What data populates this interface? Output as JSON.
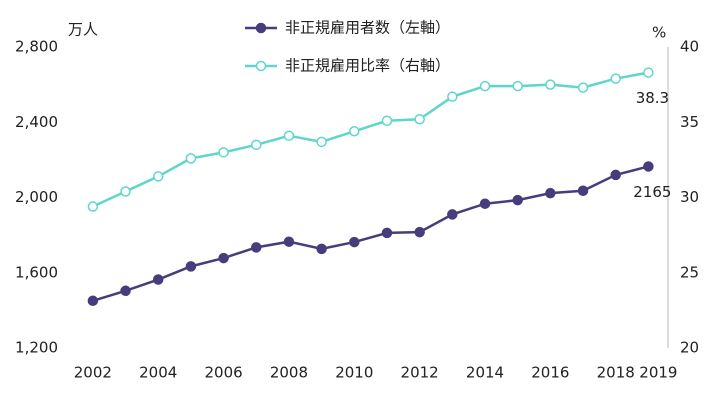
{
  "chart_data": {
    "type": "line",
    "y_unit_label": "万人",
    "y2_unit_label": "%",
    "x": [
      2002,
      2003,
      2004,
      2005,
      2006,
      2007,
      2008,
      2009,
      2010,
      2011,
      2012,
      2013,
      2014,
      2015,
      2016,
      2017,
      2018,
      2019
    ],
    "xlim": [
      2001.3,
      2019.6
    ],
    "xticks": [
      2002,
      2004,
      2006,
      2008,
      2010,
      2012,
      2014,
      2016,
      2018,
      2019
    ],
    "ylim": [
      1200,
      2800
    ],
    "yticks": [
      {
        "value": 1200,
        "label": "1,200"
      },
      {
        "value": 1600,
        "label": "1,600"
      },
      {
        "value": 2000,
        "label": "2,000"
      },
      {
        "value": 2400,
        "label": "2,400"
      },
      {
        "value": 2800,
        "label": "2,800"
      }
    ],
    "y2lim": [
      20,
      40
    ],
    "y2ticks": [
      20,
      25,
      30,
      35,
      40
    ],
    "series": [
      {
        "name": "非正規雇用者数（左軸）",
        "color": "#463d7c",
        "marker_fill": "#463d7c",
        "values": [
          1451,
          1504,
          1564,
          1634,
          1678,
          1735,
          1765,
          1727,
          1763,
          1812,
          1816,
          1910,
          1967,
          1986,
          2023,
          2036,
          2120,
          2165
        ]
      },
      {
        "name": "非正規雇用比率（右軸）",
        "color": "#5fd6cc",
        "marker_fill": "#ffffff",
        "axis": "y2",
        "values": [
          29.4,
          30.4,
          31.4,
          32.6,
          33.0,
          33.5,
          34.1,
          33.7,
          34.4,
          35.1,
          35.2,
          36.7,
          37.4,
          37.4,
          37.5,
          37.3,
          37.9,
          38.3
        ]
      }
    ],
    "labeled_points": [
      {
        "series": 1,
        "index": 17
      },
      {
        "series": 0,
        "index": 17
      }
    ]
  }
}
